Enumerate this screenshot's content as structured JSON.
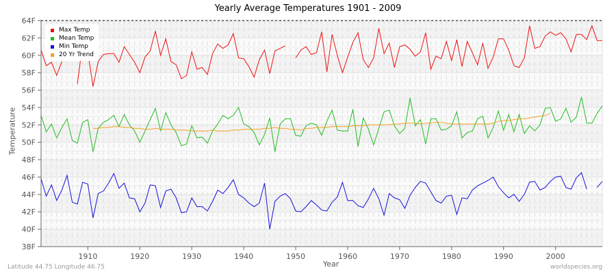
{
  "header": {
    "title": "Yearly Average Temperatures 1901 - 2009"
  },
  "footer": {
    "location": "Latitude 44.75 Longitude 46.75",
    "source": "worldspecies.org"
  },
  "colors": {
    "max": "#ee1111",
    "mean": "#22bb22",
    "min": "#1111dd",
    "trend": "#f5a020"
  },
  "legend": [
    {
      "label": "Max Temp",
      "color": "#ee1111"
    },
    {
      "label": "Mean Temp",
      "color": "#22bb22"
    },
    {
      "label": "Min Temp",
      "color": "#1111dd"
    },
    {
      "label": "20 Yr Trend",
      "color": "#f5a020"
    }
  ],
  "chart_data": {
    "type": "line",
    "title": "Yearly Average Temperatures 1901 - 2009",
    "xlabel": "Year",
    "ylabel": "Temperature",
    "ylim": [
      38,
      64
    ],
    "xlim": [
      1901,
      2009
    ],
    "yticks": [
      "38F",
      "40F",
      "42F",
      "44F",
      "46F",
      "48F",
      "50F",
      "52F",
      "54F",
      "56F",
      "58F",
      "60F",
      "62F",
      "64F"
    ],
    "xticks": [
      1910,
      1920,
      1930,
      1940,
      1950,
      1960,
      1970,
      1980,
      1990,
      2000
    ],
    "grid": true,
    "legend_position": "top-left",
    "x_start": 1901,
    "series": [
      {
        "name": "Max Temp",
        "values": [
          60.6,
          58.8,
          59.2,
          57.7,
          59.3,
          null,
          null,
          56.7,
          61.4,
          60.4,
          56.4,
          59.3,
          60.1,
          60.2,
          60.2,
          59.2,
          61.0,
          60.1,
          59.2,
          58.0,
          59.8,
          60.5,
          62.8,
          60.0,
          61.9,
          59.3,
          58.9,
          57.3,
          57.7,
          60.4,
          58.4,
          58.6,
          57.8,
          60.2,
          61.3,
          60.8,
          61.2,
          62.5,
          59.7,
          59.6,
          58.7,
          57.5,
          59.5,
          60.6,
          57.9,
          60.5,
          60.8,
          61.1,
          null,
          59.7,
          60.6,
          61.0,
          60.1,
          60.3,
          62.7,
          58.1,
          62.4,
          60.0,
          58.0,
          59.8,
          61.5,
          62.6,
          59.5,
          58.6,
          59.7,
          63.1,
          60.2,
          61.4,
          58.6,
          61.0,
          61.2,
          60.7,
          59.9,
          60.4,
          62.6,
          58.4,
          59.9,
          59.6,
          61.6,
          59.4,
          61.8,
          58.7,
          61.6,
          60.3,
          58.9,
          61.4,
          58.5,
          59.8,
          61.9,
          61.9,
          60.6,
          58.8,
          58.6,
          59.7,
          63.4,
          60.8,
          61.0,
          62.2,
          62.7,
          62.3,
          62.6,
          61.9,
          60.4,
          62.4,
          62.4,
          61.8,
          63.4,
          61.7,
          61.7
        ]
      },
      {
        "name": "Mean Temp",
        "values": [
          53.1,
          51.2,
          52.1,
          50.5,
          51.7,
          52.7,
          50.2,
          49.9,
          52.3,
          52.6,
          48.9,
          51.6,
          52.3,
          52.6,
          53.1,
          51.8,
          53.2,
          52.0,
          51.3,
          50.0,
          51.3,
          52.6,
          53.9,
          51.3,
          53.4,
          52.0,
          51.1,
          49.6,
          49.8,
          51.9,
          50.5,
          50.6,
          49.9,
          51.3,
          52.1,
          53.1,
          52.7,
          53.1,
          54.0,
          52.1,
          51.8,
          51.1,
          49.7,
          50.9,
          52.8,
          48.9,
          52.1,
          52.7,
          52.7,
          50.8,
          50.7,
          51.9,
          52.2,
          52.0,
          50.8,
          52.4,
          53.7,
          51.4,
          51.3,
          51.3,
          53.8,
          49.5,
          52.8,
          51.5,
          49.7,
          51.6,
          53.5,
          53.7,
          51.9,
          51.0,
          51.6,
          55.1,
          51.9,
          52.6,
          49.8,
          52.7,
          52.7,
          51.4,
          51.5,
          51.9,
          53.5,
          50.5,
          51.1,
          51.3,
          52.7,
          53.0,
          50.5,
          51.7,
          53.6,
          51.4,
          53.2,
          51.2,
          53.2,
          51.0,
          51.9,
          51.3,
          52.0,
          53.9,
          54.0,
          52.4,
          52.7,
          53.9,
          52.3,
          52.9,
          55.2,
          52.2,
          52.2,
          53.3,
          54.2
        ]
      },
      {
        "name": "Min Temp",
        "values": [
          45.8,
          43.8,
          45.1,
          43.3,
          44.5,
          46.2,
          43.1,
          42.9,
          45.4,
          45.2,
          41.3,
          44.1,
          44.4,
          45.3,
          46.4,
          44.7,
          45.3,
          43.6,
          43.5,
          42.0,
          43.0,
          45.1,
          45.0,
          42.5,
          44.4,
          44.6,
          43.6,
          41.9,
          42.0,
          43.6,
          42.6,
          42.6,
          42.1,
          43.2,
          44.5,
          44.1,
          44.8,
          45.7,
          44.0,
          43.6,
          43.0,
          42.6,
          43.0,
          45.3,
          40.0,
          43.2,
          43.8,
          44.1,
          43.5,
          42.1,
          42.0,
          42.6,
          43.3,
          42.8,
          42.2,
          42.1,
          43.1,
          43.7,
          45.4,
          43.3,
          43.3,
          42.7,
          42.5,
          43.5,
          44.7,
          43.5,
          41.6,
          44.1,
          43.6,
          43.4,
          42.4,
          43.9,
          44.8,
          45.5,
          45.3,
          44.3,
          43.3,
          43.0,
          43.8,
          43.9,
          41.7,
          43.6,
          43.5,
          44.5,
          45.0,
          45.3,
          45.6,
          46.0,
          44.9,
          44.2,
          43.6,
          44.0,
          43.2,
          44.0,
          45.4,
          45.5,
          44.5,
          44.8,
          45.5,
          46.0,
          46.1,
          44.8,
          44.6,
          45.9,
          46.5,
          44.6,
          null,
          44.8,
          45.5
        ]
      },
      {
        "name": "20 Yr Trend",
        "values": [
          null,
          null,
          null,
          null,
          null,
          null,
          null,
          null,
          null,
          null,
          51.6,
          51.6,
          51.7,
          51.7,
          51.8,
          51.8,
          51.7,
          51.7,
          51.6,
          51.6,
          51.5,
          51.5,
          51.6,
          51.5,
          51.5,
          51.5,
          51.4,
          51.4,
          51.4,
          51.3,
          51.3,
          51.3,
          51.3,
          51.4,
          51.3,
          51.3,
          51.3,
          51.4,
          51.4,
          51.5,
          51.5,
          51.5,
          51.5,
          51.6,
          51.6,
          51.7,
          51.6,
          51.6,
          51.5,
          51.5,
          51.4,
          51.6,
          51.6,
          51.7,
          51.7,
          51.7,
          51.8,
          51.8,
          51.8,
          51.8,
          51.9,
          51.9,
          51.9,
          52.0,
          52.0,
          52.0,
          52.0,
          52.0,
          52.1,
          52.1,
          52.2,
          52.2,
          52.2,
          52.1,
          52.2,
          52.2,
          52.3,
          52.3,
          52.2,
          52.1,
          52.1,
          52.1,
          52.1,
          52.1,
          52.1,
          52.1,
          52.1,
          52.2,
          52.4,
          52.5,
          52.5,
          52.6,
          52.7,
          52.7,
          52.8,
          52.9,
          53.0,
          53.1,
          53.3,
          null,
          null,
          null,
          null,
          null,
          null,
          null,
          null,
          null,
          null
        ]
      }
    ]
  }
}
